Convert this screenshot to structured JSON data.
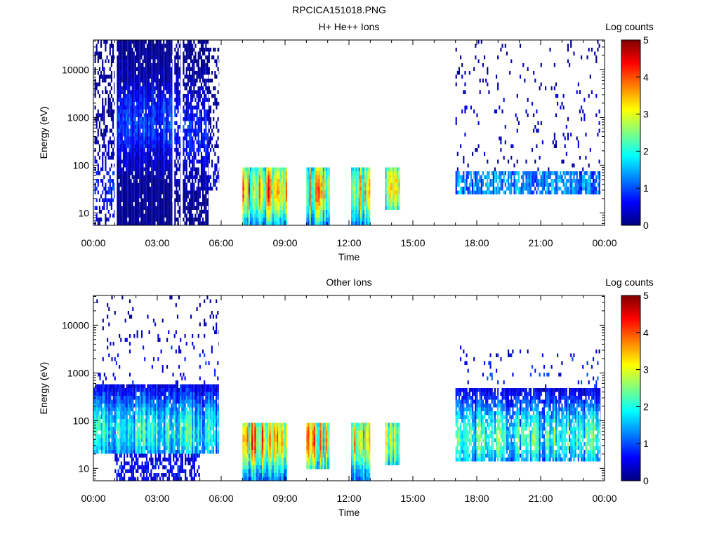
{
  "figure_title": "RPCICA151018.PNG",
  "colormap_stops": [
    "#000080",
    "#0000ff",
    "#0080ff",
    "#00ffff",
    "#80ff80",
    "#ffff00",
    "#ff8000",
    "#ff0000",
    "#800000"
  ],
  "chart_data": [
    {
      "type": "heatmap",
      "title": "H+ He++ Ions",
      "xlabel": "Time",
      "ylabel": "Energy (eV)",
      "yscale": "log",
      "ylim": [
        5.5,
        42000
      ],
      "xlim_hours": [
        0,
        24
      ],
      "x_ticks": [
        "00:00",
        "03:00",
        "06:00",
        "09:00",
        "12:00",
        "15:00",
        "18:00",
        "21:00",
        "00:00"
      ],
      "y_ticks": [
        {
          "value": 10,
          "label": "10"
        },
        {
          "value": 100,
          "label": "100"
        },
        {
          "value": 1000,
          "label": "1000"
        },
        {
          "value": 10000,
          "label": "10000"
        }
      ],
      "colorbar": {
        "label": "Log counts",
        "range": [
          0,
          5
        ],
        "ticks": [
          "0",
          "1",
          "2",
          "3",
          "4",
          "5"
        ]
      },
      "regions": [
        {
          "t_start": 0.05,
          "t_end": 1.0,
          "e_min": 5.5,
          "e_max": 40000,
          "level": 0.7,
          "density": 0.45,
          "peak_e": 30
        },
        {
          "t_start": 1.1,
          "t_end": 3.7,
          "e_min": 5.5,
          "e_max": 42000,
          "level": 0.9,
          "density": 0.95,
          "peak_e": 800
        },
        {
          "t_start": 3.8,
          "t_end": 4.1,
          "e_min": 5.5,
          "e_max": 42000,
          "level": 0.8,
          "density": 0.7,
          "peak_e": 800
        },
        {
          "t_start": 4.2,
          "t_end": 5.4,
          "e_min": 5.5,
          "e_max": 42000,
          "level": 0.7,
          "density": 0.75,
          "peak_e": 500
        },
        {
          "t_start": 5.4,
          "t_end": 5.9,
          "e_min": 30,
          "e_max": 30000,
          "level": 0.5,
          "density": 0.35,
          "peak_e": 60
        },
        {
          "t_start": 7.0,
          "t_end": 9.1,
          "e_min": 5.5,
          "e_max": 95,
          "level": 3.2,
          "density": 1.0,
          "peak_e": 30
        },
        {
          "t_start": 10.0,
          "t_end": 11.1,
          "e_min": 6,
          "e_max": 95,
          "level": 3.0,
          "density": 1.0,
          "peak_e": 30
        },
        {
          "t_start": 12.1,
          "t_end": 13.0,
          "e_min": 6,
          "e_max": 95,
          "level": 2.9,
          "density": 1.0,
          "peak_e": 30
        },
        {
          "t_start": 13.7,
          "t_end": 14.4,
          "e_min": 12,
          "e_max": 95,
          "level": 2.6,
          "density": 1.0,
          "peak_e": 35
        },
        {
          "t_start": 17.0,
          "t_end": 23.8,
          "e_min": 24,
          "e_max": 70,
          "level": 1.3,
          "density": 0.75,
          "peak_e": 40
        },
        {
          "t_start": 17.0,
          "t_end": 23.8,
          "e_min": 70,
          "e_max": 40000,
          "level": 0.4,
          "density": 0.05,
          "peak_e": 1000
        }
      ]
    },
    {
      "type": "heatmap",
      "title": "Other Ions",
      "xlabel": "Time",
      "ylabel": "Energy (eV)",
      "yscale": "log",
      "ylim": [
        5.5,
        42000
      ],
      "xlim_hours": [
        0,
        24
      ],
      "x_ticks": [
        "00:00",
        "03:00",
        "06:00",
        "09:00",
        "12:00",
        "15:00",
        "18:00",
        "21:00",
        "00:00"
      ],
      "y_ticks": [
        {
          "value": 10,
          "label": "10"
        },
        {
          "value": 100,
          "label": "100"
        },
        {
          "value": 1000,
          "label": "1000"
        },
        {
          "value": 10000,
          "label": "10000"
        }
      ],
      "colorbar": {
        "label": "Log counts",
        "range": [
          0,
          5
        ],
        "ticks": [
          "0",
          "1",
          "2",
          "3",
          "4",
          "5"
        ]
      },
      "regions": [
        {
          "t_start": 0.0,
          "t_end": 5.9,
          "e_min": 22,
          "e_max": 600,
          "level": 1.9,
          "density": 0.95,
          "peak_e": 60
        },
        {
          "t_start": 0.0,
          "t_end": 5.9,
          "e_min": 600,
          "e_max": 40000,
          "level": 0.6,
          "density": 0.06,
          "peak_e": 1500
        },
        {
          "t_start": 1.0,
          "t_end": 5.0,
          "e_min": 5.5,
          "e_max": 22,
          "level": 0.6,
          "density": 0.6,
          "peak_e": 10
        },
        {
          "t_start": 7.0,
          "t_end": 9.1,
          "e_min": 5.5,
          "e_max": 95,
          "level": 3.2,
          "density": 1.0,
          "peak_e": 40
        },
        {
          "t_start": 10.0,
          "t_end": 11.1,
          "e_min": 9,
          "e_max": 95,
          "level": 3.1,
          "density": 1.0,
          "peak_e": 40
        },
        {
          "t_start": 12.1,
          "t_end": 13.0,
          "e_min": 6,
          "e_max": 95,
          "level": 2.9,
          "density": 1.0,
          "peak_e": 40
        },
        {
          "t_start": 13.7,
          "t_end": 14.4,
          "e_min": 12,
          "e_max": 95,
          "level": 2.6,
          "density": 1.0,
          "peak_e": 40
        },
        {
          "t_start": 17.0,
          "t_end": 23.8,
          "e_min": 15,
          "e_max": 500,
          "level": 2.0,
          "density": 0.85,
          "peak_e": 45
        },
        {
          "t_start": 17.0,
          "t_end": 23.8,
          "e_min": 500,
          "e_max": 4000,
          "level": 0.7,
          "density": 0.06,
          "peak_e": 800
        }
      ]
    }
  ]
}
